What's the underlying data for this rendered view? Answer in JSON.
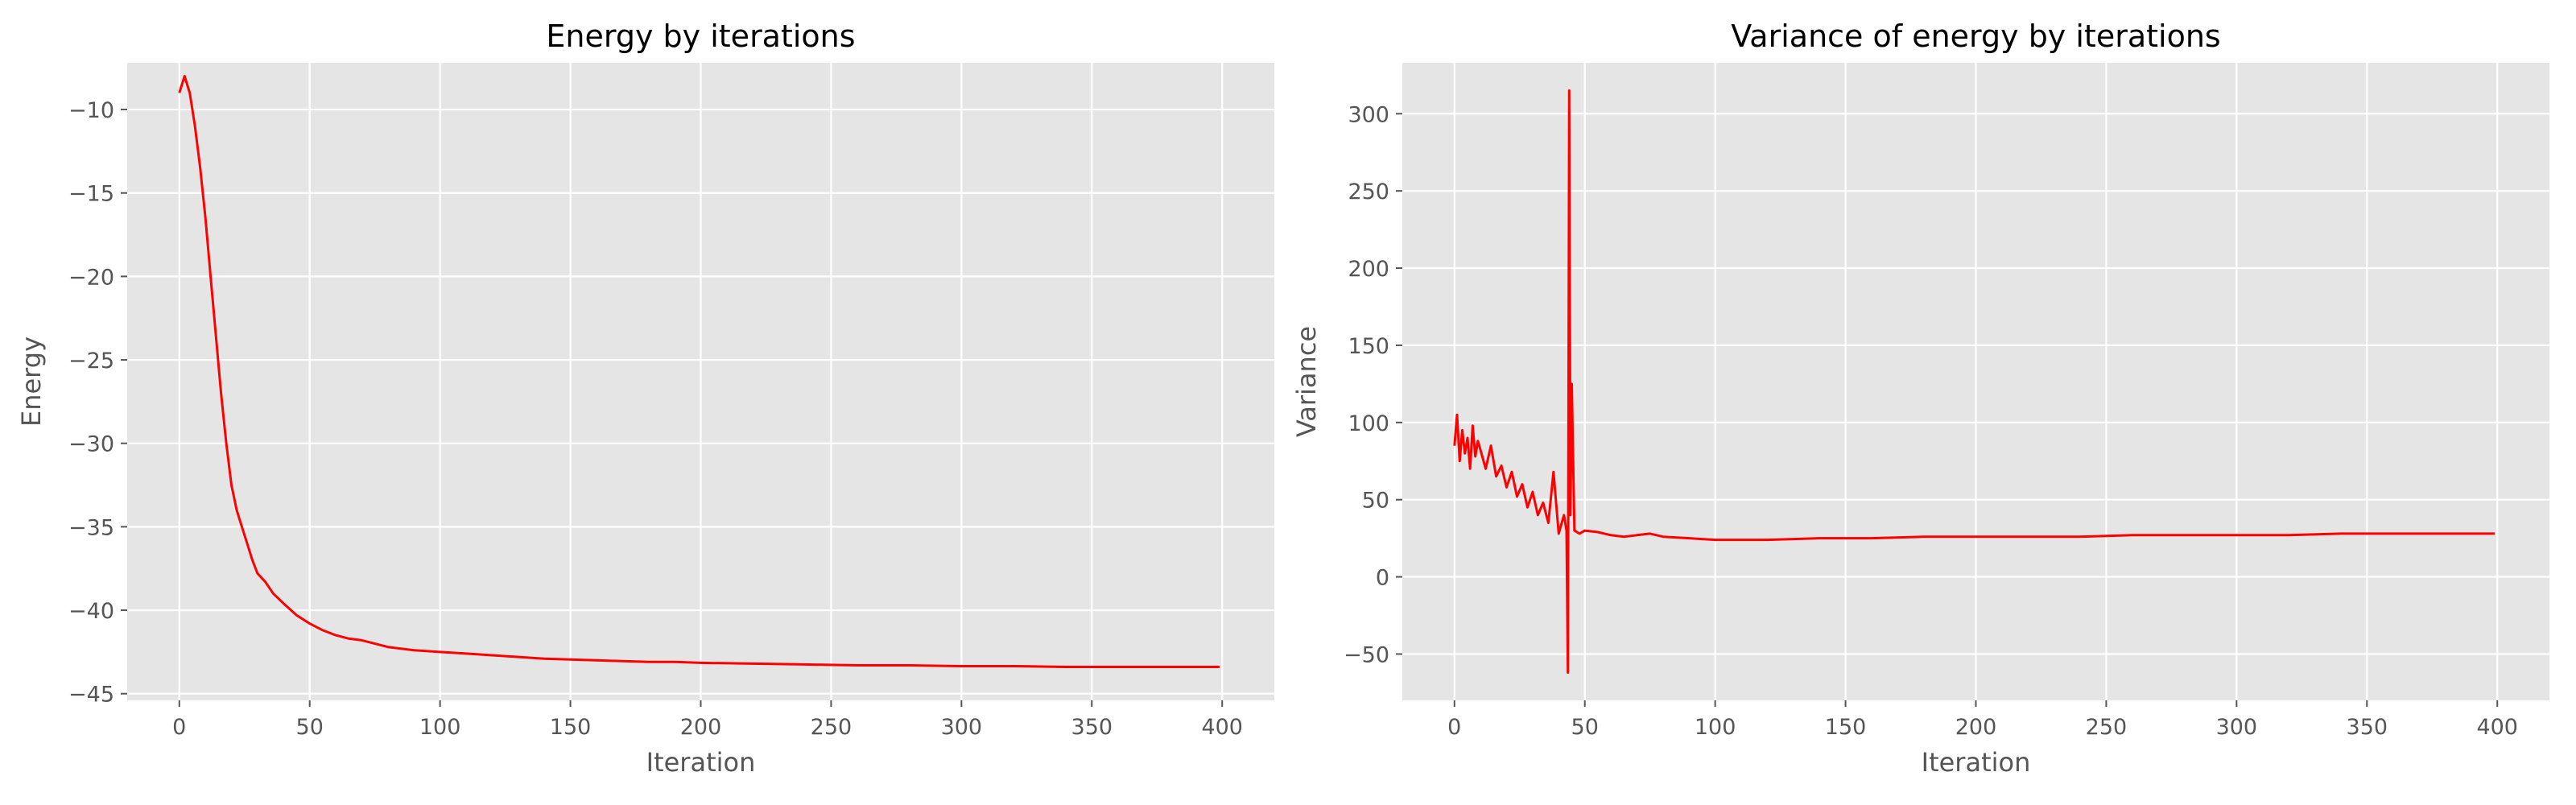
{
  "chart_data": [
    {
      "type": "line",
      "title": "Energy by iterations",
      "xlabel": "Iteration",
      "ylabel": "Energy",
      "xlim": [
        -20,
        420
      ],
      "ylim": [
        -45.4,
        -7.2
      ],
      "xticks": [
        0,
        50,
        100,
        150,
        200,
        250,
        300,
        350,
        400
      ],
      "yticks": [
        -45,
        -40,
        -35,
        -30,
        -25,
        -20,
        -15,
        -10
      ],
      "xticklabels": [
        "0",
        "50",
        "100",
        "150",
        "200",
        "250",
        "300",
        "350",
        "400"
      ],
      "yticklabels": [
        "−45",
        "−40",
        "−35",
        "−30",
        "−25",
        "−20",
        "−15",
        "−10"
      ],
      "grid": true,
      "color": "#ff0000",
      "series": [
        {
          "x": [
            0,
            2,
            4,
            6,
            8,
            10,
            12,
            14,
            16,
            18,
            20,
            22,
            24,
            26,
            28,
            30,
            33,
            36,
            40,
            45,
            50,
            55,
            60,
            65,
            70,
            80,
            90,
            100,
            110,
            120,
            130,
            140,
            150,
            160,
            170,
            180,
            190,
            200,
            220,
            240,
            260,
            280,
            300,
            320,
            340,
            360,
            380,
            399
          ],
          "y": [
            -9.0,
            -8.0,
            -9.0,
            -11.0,
            -13.5,
            -16.5,
            -20.0,
            -23.5,
            -27.0,
            -30.0,
            -32.5,
            -34.0,
            -35.0,
            -36.0,
            -37.0,
            -37.8,
            -38.3,
            -39.0,
            -39.6,
            -40.3,
            -40.8,
            -41.2,
            -41.5,
            -41.7,
            -41.8,
            -42.2,
            -42.4,
            -42.5,
            -42.6,
            -42.7,
            -42.8,
            -42.9,
            -42.95,
            -43.0,
            -43.05,
            -43.1,
            -43.1,
            -43.15,
            -43.2,
            -43.25,
            -43.3,
            -43.3,
            -43.35,
            -43.35,
            -43.4,
            -43.4,
            -43.4,
            -43.4
          ]
        }
      ]
    },
    {
      "type": "line",
      "title": "Variance of energy by iterations",
      "xlabel": "Iteration",
      "ylabel": "Variance",
      "xlim": [
        -20,
        420
      ],
      "ylim": [
        -80,
        333
      ],
      "xticks": [
        0,
        50,
        100,
        150,
        200,
        250,
        300,
        350,
        400
      ],
      "yticks": [
        -50,
        0,
        50,
        100,
        150,
        200,
        250,
        300
      ],
      "xticklabels": [
        "0",
        "50",
        "100",
        "150",
        "200",
        "250",
        "300",
        "350",
        "400"
      ],
      "yticklabels": [
        "−50",
        "0",
        "50",
        "100",
        "150",
        "200",
        "250",
        "300"
      ],
      "grid": true,
      "color": "#ff0000",
      "series": [
        {
          "x": [
            0,
            1,
            2,
            3,
            4,
            5,
            6,
            7,
            8,
            9,
            10,
            12,
            14,
            16,
            18,
            20,
            22,
            24,
            26,
            28,
            30,
            32,
            34,
            36,
            38,
            40,
            42,
            43,
            43.5,
            44,
            44.5,
            45,
            46,
            48,
            50,
            55,
            60,
            65,
            70,
            75,
            80,
            90,
            100,
            120,
            140,
            160,
            180,
            200,
            220,
            240,
            260,
            280,
            300,
            320,
            340,
            360,
            380,
            399
          ],
          "y": [
            85,
            105,
            75,
            95,
            80,
            90,
            70,
            98,
            78,
            88,
            82,
            70,
            85,
            65,
            72,
            58,
            68,
            52,
            60,
            45,
            55,
            40,
            48,
            35,
            68,
            28,
            40,
            30,
            -62,
            315,
            40,
            125,
            30,
            28,
            30,
            29,
            27,
            26,
            27,
            28,
            26,
            25,
            24,
            24,
            25,
            25,
            26,
            26,
            26,
            26,
            27,
            27,
            27,
            27,
            28,
            28,
            28,
            28
          ]
        }
      ]
    }
  ]
}
